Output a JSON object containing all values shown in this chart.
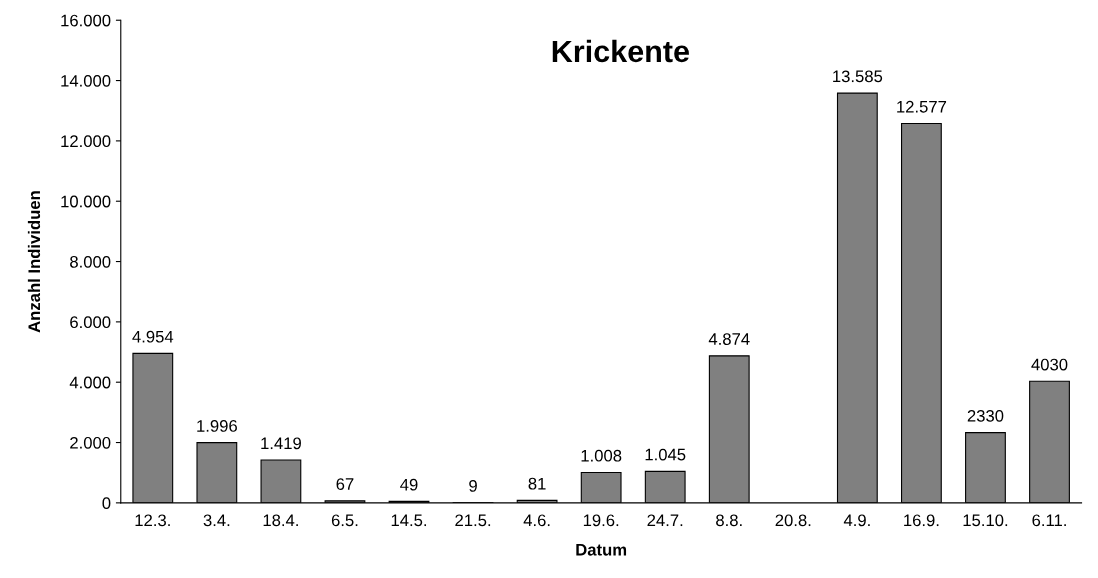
{
  "chart_data": {
    "type": "bar",
    "title": "Krickente",
    "xlabel": "Datum",
    "ylabel": "Anzahl Individuen",
    "categories": [
      "12.3.",
      "3.4.",
      "18.4.",
      "6.5.",
      "14.5.",
      "21.5.",
      "4.6.",
      "19.6.",
      "24.7.",
      "8.8.",
      "20.8.",
      "4.9.",
      "16.9.",
      "15.10.",
      "6.11."
    ],
    "values": [
      4954,
      1996,
      1419,
      67,
      49,
      9,
      81,
      1008,
      1045,
      4874,
      null,
      13585,
      12577,
      2330,
      4030
    ],
    "value_labels": [
      "4.954",
      "1.996",
      "1.419",
      "67",
      "49",
      "9",
      "81",
      "1.008",
      "1.045",
      "4.874",
      null,
      "13.585",
      "12.577",
      "2330",
      "4030"
    ],
    "color": "#808080",
    "ylim": [
      0,
      16000
    ],
    "yticks": [
      0,
      {
        "value": 2000,
        "label": "2.000"
      },
      {
        "value": 4000,
        "label": "4.000"
      },
      {
        "value": 6000,
        "label": "6.000"
      },
      {
        "value": 8000,
        "label": "8.000"
      },
      {
        "value": 10000,
        "label": "10.000"
      },
      {
        "value": 12000,
        "label": "12.000"
      },
      {
        "value": 14000,
        "label": "14.000"
      },
      {
        "value": 16000,
        "label": "16.000"
      }
    ],
    "grid": false,
    "legend": false
  }
}
